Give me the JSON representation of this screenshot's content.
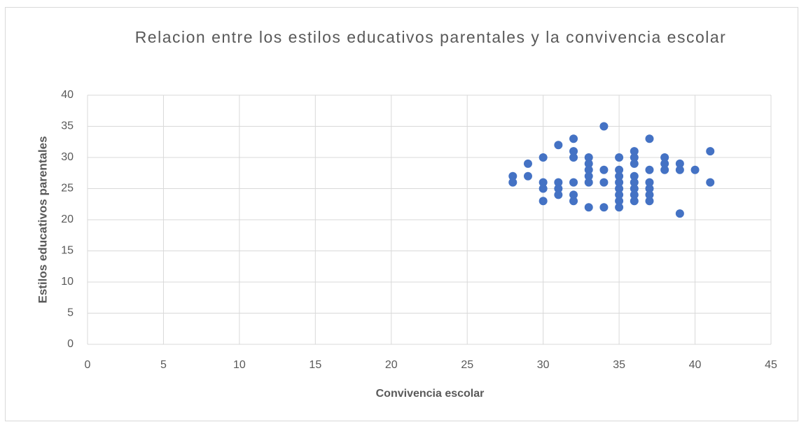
{
  "chart_data": {
    "type": "scatter",
    "title": "Relacion entre los estilos educativos parentales y la convivencia escolar",
    "xlabel": "Convivencia escolar",
    "ylabel": "Estilos educativos parentales",
    "x": [
      28,
      28,
      29,
      29,
      30,
      30,
      30,
      30,
      31,
      31,
      31,
      31,
      32,
      32,
      32,
      32,
      32,
      32,
      33,
      33,
      33,
      33,
      33,
      33,
      34,
      34,
      34,
      34,
      35,
      35,
      35,
      35,
      35,
      35,
      35,
      35,
      36,
      36,
      36,
      36,
      36,
      36,
      36,
      36,
      37,
      37,
      37,
      37,
      37,
      37,
      38,
      38,
      38,
      39,
      39,
      39,
      40,
      41,
      41
    ],
    "y": [
      27,
      26,
      29,
      27,
      30,
      26,
      25,
      23,
      32,
      26,
      25,
      24,
      33,
      31,
      30,
      26,
      24,
      23,
      30,
      29,
      28,
      27,
      26,
      22,
      35,
      28,
      26,
      22,
      30,
      28,
      27,
      26,
      25,
      24,
      23,
      22,
      31,
      30,
      29,
      27,
      26,
      25,
      24,
      23,
      33,
      28,
      26,
      25,
      24,
      23,
      30,
      29,
      28,
      29,
      28,
      21,
      28,
      31,
      26
    ],
    "color": "#4472c4",
    "xlim": [
      0,
      45
    ],
    "xticks": [
      0,
      5,
      10,
      15,
      20,
      25,
      30,
      35,
      40,
      45
    ],
    "ylim": [
      0,
      40
    ],
    "yticks": [
      0,
      5,
      10,
      15,
      20,
      25,
      30,
      35,
      40
    ],
    "grid": true
  }
}
